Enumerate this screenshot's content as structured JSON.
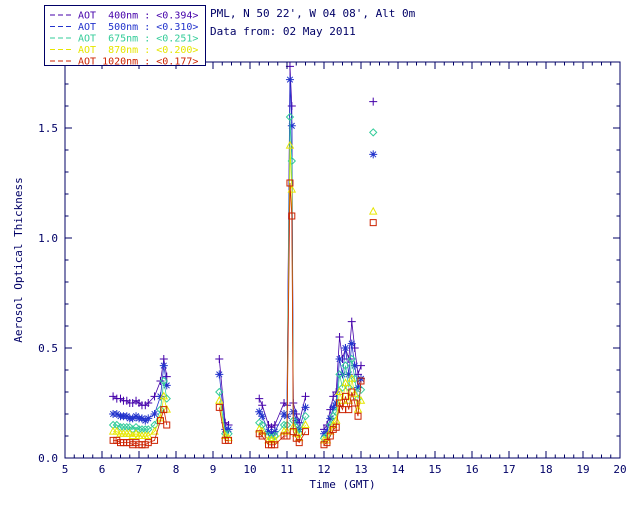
{
  "header": {
    "location_line": "PML, N 50 22', W 04 08', Alt 0m",
    "date_line": "Data from: 02 May 2011"
  },
  "colors": {
    "background": "#ffffff",
    "axis": "#000066",
    "text": "#000066"
  },
  "chart_data": {
    "type": "scatter",
    "title": "",
    "xlabel": "Time (GMT)",
    "ylabel": "Aerosol Optical Thickness",
    "xlim": [
      5,
      20
    ],
    "ylim": [
      0,
      1.8
    ],
    "xticks": [
      5,
      6,
      7,
      8,
      9,
      10,
      11,
      12,
      13,
      14,
      15,
      16,
      17,
      18,
      19,
      20
    ],
    "yticks": [
      0.0,
      0.5,
      1.0,
      1.5
    ],
    "x_minor_step": 0.25,
    "y_minor_step": 0.1,
    "grid": false,
    "legend_position": "top-left",
    "line_gap_threshold": 0.3,
    "series": [
      {
        "id": "aot-400nm",
        "name": "AOT  400nm",
        "mean_label": "<0.394>",
        "color": "#4400aa",
        "marker": "plus",
        "points": [
          [
            6.3,
            0.28
          ],
          [
            6.4,
            0.27
          ],
          [
            6.5,
            0.27
          ],
          [
            6.58,
            0.26
          ],
          [
            6.67,
            0.26
          ],
          [
            6.75,
            0.25
          ],
          [
            6.83,
            0.25
          ],
          [
            6.92,
            0.26
          ],
          [
            7.0,
            0.25
          ],
          [
            7.08,
            0.24
          ],
          [
            7.17,
            0.24
          ],
          [
            7.25,
            0.25
          ],
          [
            7.42,
            0.28
          ],
          [
            7.58,
            0.35
          ],
          [
            7.67,
            0.45
          ],
          [
            7.75,
            0.37
          ],
          [
            9.17,
            0.45
          ],
          [
            9.33,
            0.16
          ],
          [
            9.42,
            0.15
          ],
          [
            10.25,
            0.27
          ],
          [
            10.33,
            0.24
          ],
          [
            10.5,
            0.15
          ],
          [
            10.58,
            0.14
          ],
          [
            10.67,
            0.15
          ],
          [
            10.92,
            0.25
          ],
          [
            11.0,
            0.24
          ],
          [
            11.08,
            1.78
          ],
          [
            11.13,
            1.6
          ],
          [
            11.17,
            0.25
          ],
          [
            11.25,
            0.2
          ],
          [
            11.33,
            0.16
          ],
          [
            11.5,
            0.28
          ],
          [
            12.0,
            0.13
          ],
          [
            12.08,
            0.15
          ],
          [
            12.17,
            0.22
          ],
          [
            12.25,
            0.28
          ],
          [
            12.33,
            0.3
          ],
          [
            12.42,
            0.55
          ],
          [
            12.5,
            0.45
          ],
          [
            12.58,
            0.5
          ],
          [
            12.67,
            0.45
          ],
          [
            12.75,
            0.62
          ],
          [
            12.83,
            0.5
          ],
          [
            12.92,
            0.38
          ],
          [
            13.0,
            0.42
          ],
          [
            13.33,
            1.62
          ]
        ]
      },
      {
        "id": "aot-500nm",
        "name": "AOT  500nm",
        "mean_label": "<0.310>",
        "color": "#2233cc",
        "marker": "asterisk",
        "points": [
          [
            6.3,
            0.2
          ],
          [
            6.4,
            0.2
          ],
          [
            6.5,
            0.19
          ],
          [
            6.58,
            0.19
          ],
          [
            6.67,
            0.19
          ],
          [
            6.75,
            0.18
          ],
          [
            6.83,
            0.18
          ],
          [
            6.92,
            0.19
          ],
          [
            7.0,
            0.18
          ],
          [
            7.08,
            0.18
          ],
          [
            7.17,
            0.17
          ],
          [
            7.25,
            0.18
          ],
          [
            7.42,
            0.2
          ],
          [
            7.58,
            0.28
          ],
          [
            7.67,
            0.42
          ],
          [
            7.75,
            0.33
          ],
          [
            9.17,
            0.38
          ],
          [
            9.33,
            0.13
          ],
          [
            9.42,
            0.13
          ],
          [
            10.25,
            0.21
          ],
          [
            10.33,
            0.19
          ],
          [
            10.5,
            0.12
          ],
          [
            10.58,
            0.11
          ],
          [
            10.67,
            0.12
          ],
          [
            10.92,
            0.2
          ],
          [
            11.0,
            0.19
          ],
          [
            11.08,
            1.72
          ],
          [
            11.13,
            1.51
          ],
          [
            11.17,
            0.21
          ],
          [
            11.25,
            0.17
          ],
          [
            11.33,
            0.13
          ],
          [
            11.5,
            0.23
          ],
          [
            12.0,
            0.11
          ],
          [
            12.08,
            0.12
          ],
          [
            12.17,
            0.18
          ],
          [
            12.25,
            0.23
          ],
          [
            12.33,
            0.25
          ],
          [
            12.42,
            0.45
          ],
          [
            12.5,
            0.38
          ],
          [
            12.58,
            0.5
          ],
          [
            12.67,
            0.38
          ],
          [
            12.75,
            0.52
          ],
          [
            12.83,
            0.42
          ],
          [
            12.92,
            0.32
          ],
          [
            13.0,
            0.36
          ],
          [
            13.33,
            1.38
          ]
        ]
      },
      {
        "id": "aot-675nm",
        "name": "AOT  675nm",
        "mean_label": "<0.251>",
        "color": "#33cc99",
        "marker": "diamond",
        "points": [
          [
            6.3,
            0.15
          ],
          [
            6.4,
            0.15
          ],
          [
            6.5,
            0.14
          ],
          [
            6.58,
            0.14
          ],
          [
            6.67,
            0.14
          ],
          [
            6.75,
            0.14
          ],
          [
            6.83,
            0.13
          ],
          [
            6.92,
            0.14
          ],
          [
            7.0,
            0.13
          ],
          [
            7.08,
            0.13
          ],
          [
            7.17,
            0.13
          ],
          [
            7.25,
            0.13
          ],
          [
            7.42,
            0.15
          ],
          [
            7.58,
            0.22
          ],
          [
            7.67,
            0.35
          ],
          [
            7.75,
            0.27
          ],
          [
            9.17,
            0.3
          ],
          [
            9.33,
            0.11
          ],
          [
            9.42,
            0.11
          ],
          [
            10.25,
            0.16
          ],
          [
            10.33,
            0.15
          ],
          [
            10.5,
            0.1
          ],
          [
            10.58,
            0.09
          ],
          [
            10.67,
            0.1
          ],
          [
            10.92,
            0.15
          ],
          [
            11.0,
            0.15
          ],
          [
            11.08,
            1.55
          ],
          [
            11.13,
            1.35
          ],
          [
            11.17,
            0.17
          ],
          [
            11.25,
            0.14
          ],
          [
            11.33,
            0.11
          ],
          [
            11.5,
            0.19
          ],
          [
            12.0,
            0.09
          ],
          [
            12.08,
            0.1
          ],
          [
            12.17,
            0.15
          ],
          [
            12.25,
            0.19
          ],
          [
            12.33,
            0.21
          ],
          [
            12.42,
            0.38
          ],
          [
            12.5,
            0.32
          ],
          [
            12.58,
            0.42
          ],
          [
            12.67,
            0.32
          ],
          [
            12.75,
            0.45
          ],
          [
            12.83,
            0.36
          ],
          [
            12.92,
            0.27
          ],
          [
            13.0,
            0.31
          ],
          [
            13.33,
            1.48
          ]
        ]
      },
      {
        "id": "aot-870nm",
        "name": "AOT  870nm",
        "mean_label": "<0.200>",
        "color": "#e6e600",
        "marker": "triangle",
        "points": [
          [
            6.3,
            0.12
          ],
          [
            6.4,
            0.12
          ],
          [
            6.5,
            0.11
          ],
          [
            6.58,
            0.11
          ],
          [
            6.67,
            0.11
          ],
          [
            6.75,
            0.11
          ],
          [
            6.83,
            0.1
          ],
          [
            6.92,
            0.11
          ],
          [
            7.0,
            0.1
          ],
          [
            7.08,
            0.1
          ],
          [
            7.17,
            0.1
          ],
          [
            7.25,
            0.1
          ],
          [
            7.42,
            0.12
          ],
          [
            7.58,
            0.18
          ],
          [
            7.67,
            0.28
          ],
          [
            7.75,
            0.22
          ],
          [
            9.17,
            0.26
          ],
          [
            9.33,
            0.1
          ],
          [
            9.42,
            0.09
          ],
          [
            10.25,
            0.13
          ],
          [
            10.33,
            0.12
          ],
          [
            10.5,
            0.08
          ],
          [
            10.58,
            0.08
          ],
          [
            10.67,
            0.08
          ],
          [
            10.92,
            0.12
          ],
          [
            11.0,
            0.12
          ],
          [
            11.08,
            1.42
          ],
          [
            11.13,
            1.22
          ],
          [
            11.17,
            0.14
          ],
          [
            11.25,
            0.11
          ],
          [
            11.33,
            0.09
          ],
          [
            11.5,
            0.15
          ],
          [
            12.0,
            0.08
          ],
          [
            12.08,
            0.08
          ],
          [
            12.17,
            0.12
          ],
          [
            12.25,
            0.15
          ],
          [
            12.33,
            0.17
          ],
          [
            12.42,
            0.3
          ],
          [
            12.5,
            0.26
          ],
          [
            12.58,
            0.34
          ],
          [
            12.67,
            0.26
          ],
          [
            12.75,
            0.36
          ],
          [
            12.83,
            0.29
          ],
          [
            12.92,
            0.22
          ],
          [
            13.0,
            0.26
          ],
          [
            13.33,
            1.12
          ]
        ]
      },
      {
        "id": "aot-1020nm",
        "name": "AOT 1020nm",
        "mean_label": "<0.177>",
        "color": "#cc2200",
        "marker": "square",
        "points": [
          [
            6.3,
            0.08
          ],
          [
            6.4,
            0.08
          ],
          [
            6.5,
            0.07
          ],
          [
            6.58,
            0.07
          ],
          [
            6.67,
            0.07
          ],
          [
            6.75,
            0.07
          ],
          [
            6.83,
            0.06
          ],
          [
            6.92,
            0.07
          ],
          [
            7.0,
            0.06
          ],
          [
            7.08,
            0.06
          ],
          [
            7.17,
            0.06
          ],
          [
            7.25,
            0.07
          ],
          [
            7.42,
            0.08
          ],
          [
            7.58,
            0.17
          ],
          [
            7.67,
            0.22
          ],
          [
            7.75,
            0.15
          ],
          [
            9.17,
            0.23
          ],
          [
            9.33,
            0.08
          ],
          [
            9.42,
            0.08
          ],
          [
            10.25,
            0.11
          ],
          [
            10.33,
            0.1
          ],
          [
            10.5,
            0.06
          ],
          [
            10.58,
            0.06
          ],
          [
            10.67,
            0.06
          ],
          [
            10.92,
            0.1
          ],
          [
            11.0,
            0.1
          ],
          [
            11.08,
            1.25
          ],
          [
            11.13,
            1.1
          ],
          [
            11.17,
            0.12
          ],
          [
            11.25,
            0.09
          ],
          [
            11.33,
            0.07
          ],
          [
            11.5,
            0.12
          ],
          [
            12.0,
            0.06
          ],
          [
            12.08,
            0.07
          ],
          [
            12.17,
            0.1
          ],
          [
            12.25,
            0.13
          ],
          [
            12.33,
            0.14
          ],
          [
            12.42,
            0.25
          ],
          [
            12.5,
            0.22
          ],
          [
            12.58,
            0.28
          ],
          [
            12.67,
            0.22
          ],
          [
            12.75,
            0.3
          ],
          [
            12.83,
            0.25
          ],
          [
            12.92,
            0.19
          ],
          [
            13.0,
            0.35
          ],
          [
            13.33,
            1.07
          ]
        ]
      }
    ]
  }
}
